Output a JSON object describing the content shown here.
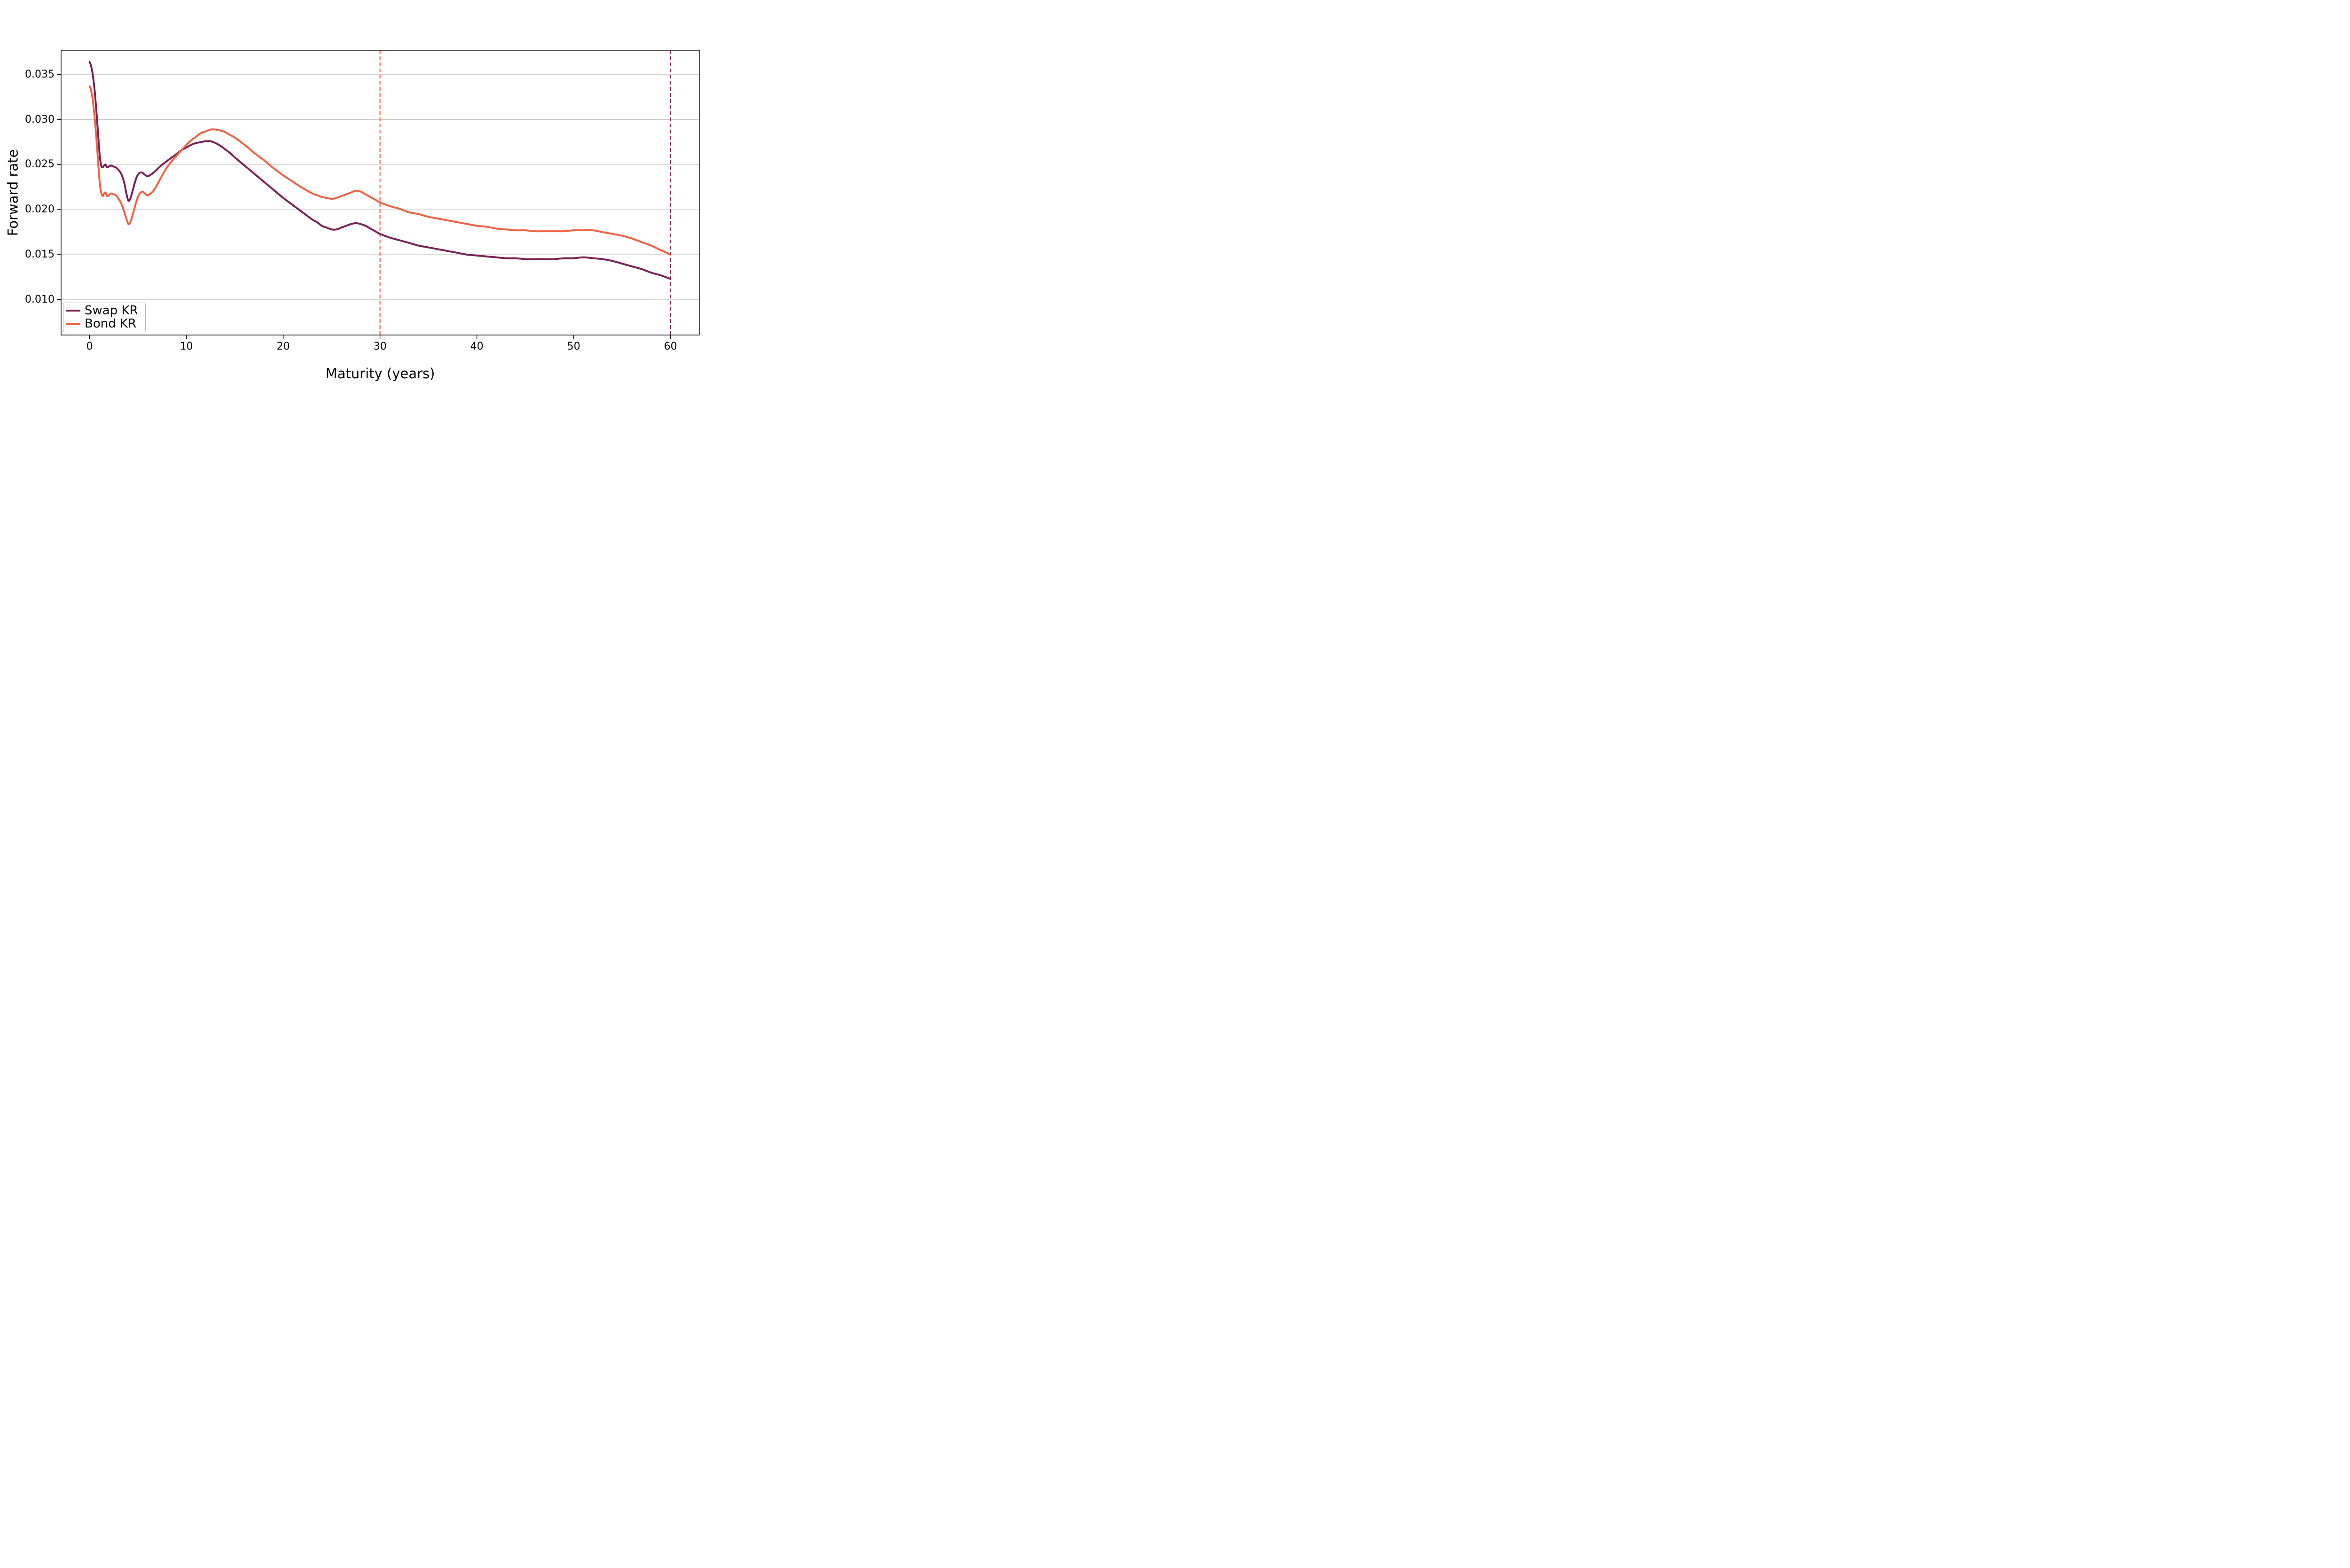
{
  "chart_data": {
    "type": "line",
    "title": "",
    "xlabel": "Maturity (years)",
    "ylabel": "Forward rate",
    "xlim": [
      -2.94,
      62.98
    ],
    "ylim": [
      0.00607,
      0.0377
    ],
    "grid": "horizontal",
    "grid_color": "#c4c4c4",
    "spine_color": "#000000",
    "background_color": "#ffffff",
    "legend_position": "lower left",
    "xticks": [
      {
        "value": 0,
        "label": "0"
      },
      {
        "value": 10,
        "label": "10"
      },
      {
        "value": 20,
        "label": "20"
      },
      {
        "value": 30,
        "label": "30"
      },
      {
        "value": 40,
        "label": "40"
      },
      {
        "value": 50,
        "label": "50"
      },
      {
        "value": 60,
        "label": "60"
      }
    ],
    "yticks": [
      {
        "value": 0.01,
        "label": "0.010"
      },
      {
        "value": 0.015,
        "label": "0.015"
      },
      {
        "value": 0.02,
        "label": "0.020"
      },
      {
        "value": 0.025,
        "label": "0.025"
      },
      {
        "value": 0.03,
        "label": "0.030"
      },
      {
        "value": 0.035,
        "label": "0.035"
      }
    ],
    "vlines": [
      {
        "x": 30,
        "color": "#ee6345",
        "style": "dashed"
      },
      {
        "x": 60,
        "color": "#7a2257",
        "style": "dashed"
      }
    ],
    "series": [
      {
        "name": "Swap KR",
        "color": "#7a2257",
        "line_width": 4,
        "points": [
          [
            0,
            0.0364
          ],
          [
            0.12,
            0.0361
          ],
          [
            0.3,
            0.0352
          ],
          [
            0.5,
            0.0335
          ],
          [
            0.7,
            0.031
          ],
          [
            0.9,
            0.0281
          ],
          [
            1.05,
            0.026
          ],
          [
            1.2,
            0.0249
          ],
          [
            1.35,
            0.0247
          ],
          [
            1.5,
            0.0249
          ],
          [
            1.65,
            0.025
          ],
          [
            1.8,
            0.0247
          ],
          [
            2,
            0.0248
          ],
          [
            2.2,
            0.0249
          ],
          [
            2.45,
            0.0248
          ],
          [
            2.7,
            0.0247
          ],
          [
            3,
            0.0244
          ],
          [
            3.3,
            0.0239
          ],
          [
            3.6,
            0.0229
          ],
          [
            3.8,
            0.0218
          ],
          [
            4,
            0.021
          ],
          [
            4.2,
            0.0212
          ],
          [
            4.45,
            0.0221
          ],
          [
            4.7,
            0.0231
          ],
          [
            4.95,
            0.0238
          ],
          [
            5.2,
            0.0241
          ],
          [
            5.45,
            0.0241
          ],
          [
            5.7,
            0.0239
          ],
          [
            5.95,
            0.0237
          ],
          [
            6.2,
            0.0238
          ],
          [
            6.6,
            0.0241
          ],
          [
            7,
            0.0245
          ],
          [
            7.5,
            0.025
          ],
          [
            8,
            0.0254
          ],
          [
            8.5,
            0.0258
          ],
          [
            9,
            0.0262
          ],
          [
            9.5,
            0.0266
          ],
          [
            10,
            0.0269
          ],
          [
            10.5,
            0.0272
          ],
          [
            11,
            0.0274
          ],
          [
            11.5,
            0.0275
          ],
          [
            12,
            0.0276
          ],
          [
            12.5,
            0.0276
          ],
          [
            13,
            0.0274
          ],
          [
            13.5,
            0.0271
          ],
          [
            14,
            0.0267
          ],
          [
            14.5,
            0.0263
          ],
          [
            15,
            0.0258
          ],
          [
            16,
            0.0249
          ],
          [
            17,
            0.024
          ],
          [
            18,
            0.0231
          ],
          [
            19,
            0.0222
          ],
          [
            20,
            0.0213
          ],
          [
            21,
            0.0205
          ],
          [
            22,
            0.0197
          ],
          [
            23,
            0.0189
          ],
          [
            23.5,
            0.0186
          ],
          [
            24,
            0.0182
          ],
          [
            24.5,
            0.018
          ],
          [
            25,
            0.0178
          ],
          [
            25.5,
            0.0178
          ],
          [
            26,
            0.018
          ],
          [
            26.5,
            0.0182
          ],
          [
            27,
            0.0184
          ],
          [
            27.5,
            0.0185
          ],
          [
            28,
            0.0184
          ],
          [
            28.5,
            0.0182
          ],
          [
            29,
            0.0179
          ],
          [
            29.5,
            0.0176
          ],
          [
            30,
            0.0173
          ],
          [
            31,
            0.0169
          ],
          [
            32,
            0.0166
          ],
          [
            33,
            0.0163
          ],
          [
            34,
            0.016
          ],
          [
            35,
            0.0158
          ],
          [
            36,
            0.0156
          ],
          [
            37,
            0.0154
          ],
          [
            38,
            0.0152
          ],
          [
            39,
            0.015
          ],
          [
            40,
            0.0149
          ],
          [
            41,
            0.0148
          ],
          [
            42,
            0.0147
          ],
          [
            43,
            0.0146
          ],
          [
            44,
            0.0146
          ],
          [
            45,
            0.0145
          ],
          [
            46,
            0.0145
          ],
          [
            47,
            0.0145
          ],
          [
            48,
            0.0145
          ],
          [
            49,
            0.0146
          ],
          [
            50,
            0.0146
          ],
          [
            51,
            0.0147
          ],
          [
            52,
            0.0146
          ],
          [
            53,
            0.0145
          ],
          [
            54,
            0.0143
          ],
          [
            55,
            0.014
          ],
          [
            56,
            0.0137
          ],
          [
            57,
            0.0134
          ],
          [
            58,
            0.013
          ],
          [
            59,
            0.0127
          ],
          [
            60,
            0.0123
          ]
        ]
      },
      {
        "name": "Bond KR",
        "color": "#ee6345",
        "line_width": 4,
        "points": [
          [
            0,
            0.0337
          ],
          [
            0.12,
            0.0334
          ],
          [
            0.3,
            0.0324
          ],
          [
            0.5,
            0.0305
          ],
          [
            0.7,
            0.028
          ],
          [
            0.9,
            0.025
          ],
          [
            1.05,
            0.023
          ],
          [
            1.2,
            0.0219
          ],
          [
            1.35,
            0.0215
          ],
          [
            1.5,
            0.0218
          ],
          [
            1.65,
            0.0219
          ],
          [
            1.8,
            0.0215
          ],
          [
            2,
            0.0216
          ],
          [
            2.2,
            0.0218
          ],
          [
            2.45,
            0.0217
          ],
          [
            2.7,
            0.0216
          ],
          [
            3,
            0.0212
          ],
          [
            3.3,
            0.0206
          ],
          [
            3.6,
            0.0197
          ],
          [
            3.8,
            0.019
          ],
          [
            4,
            0.0184
          ],
          [
            4.2,
            0.0186
          ],
          [
            4.45,
            0.0194
          ],
          [
            4.7,
            0.0204
          ],
          [
            4.95,
            0.0213
          ],
          [
            5.2,
            0.0218
          ],
          [
            5.45,
            0.022
          ],
          [
            5.7,
            0.0218
          ],
          [
            5.95,
            0.0216
          ],
          [
            6.2,
            0.0217
          ],
          [
            6.6,
            0.0221
          ],
          [
            7,
            0.0228
          ],
          [
            7.5,
            0.0238
          ],
          [
            8,
            0.0247
          ],
          [
            8.5,
            0.0254
          ],
          [
            9,
            0.026
          ],
          [
            9.5,
            0.0266
          ],
          [
            10,
            0.0272
          ],
          [
            10.5,
            0.0277
          ],
          [
            11,
            0.0281
          ],
          [
            11.5,
            0.0285
          ],
          [
            12,
            0.0287
          ],
          [
            12.5,
            0.0289
          ],
          [
            13,
            0.0289
          ],
          [
            13.5,
            0.0288
          ],
          [
            14,
            0.0286
          ],
          [
            14.5,
            0.0283
          ],
          [
            15,
            0.028
          ],
          [
            16,
            0.0272
          ],
          [
            17,
            0.0263
          ],
          [
            18,
            0.0255
          ],
          [
            19,
            0.0246
          ],
          [
            20,
            0.0238
          ],
          [
            21,
            0.0231
          ],
          [
            22,
            0.0224
          ],
          [
            23,
            0.0218
          ],
          [
            23.5,
            0.0216
          ],
          [
            24,
            0.0214
          ],
          [
            24.5,
            0.0213
          ],
          [
            25,
            0.0212
          ],
          [
            25.5,
            0.0213
          ],
          [
            26,
            0.0215
          ],
          [
            26.5,
            0.0217
          ],
          [
            27,
            0.0219
          ],
          [
            27.5,
            0.0221
          ],
          [
            28,
            0.022
          ],
          [
            28.5,
            0.0217
          ],
          [
            29,
            0.0214
          ],
          [
            29.5,
            0.0211
          ],
          [
            30,
            0.0208
          ],
          [
            31,
            0.0204
          ],
          [
            32,
            0.0201
          ],
          [
            33,
            0.0197
          ],
          [
            34,
            0.0195
          ],
          [
            35,
            0.0192
          ],
          [
            36,
            0.019
          ],
          [
            37,
            0.0188
          ],
          [
            38,
            0.0186
          ],
          [
            39,
            0.0184
          ],
          [
            40,
            0.0182
          ],
          [
            41,
            0.0181
          ],
          [
            42,
            0.0179
          ],
          [
            43,
            0.0178
          ],
          [
            44,
            0.0177
          ],
          [
            45,
            0.0177
          ],
          [
            46,
            0.0176
          ],
          [
            47,
            0.0176
          ],
          [
            48,
            0.0176
          ],
          [
            49,
            0.0176
          ],
          [
            50,
            0.0177
          ],
          [
            51,
            0.0177
          ],
          [
            52,
            0.0177
          ],
          [
            53,
            0.0175
          ],
          [
            54,
            0.0173
          ],
          [
            55,
            0.0171
          ],
          [
            56,
            0.0168
          ],
          [
            57,
            0.0164
          ],
          [
            58,
            0.016
          ],
          [
            59,
            0.0155
          ],
          [
            60,
            0.015
          ]
        ]
      }
    ],
    "legend": {
      "items": [
        {
          "label": "Swap KR",
          "color": "#7a2257"
        },
        {
          "label": "Bond KR",
          "color": "#ee6345"
        }
      ]
    }
  }
}
